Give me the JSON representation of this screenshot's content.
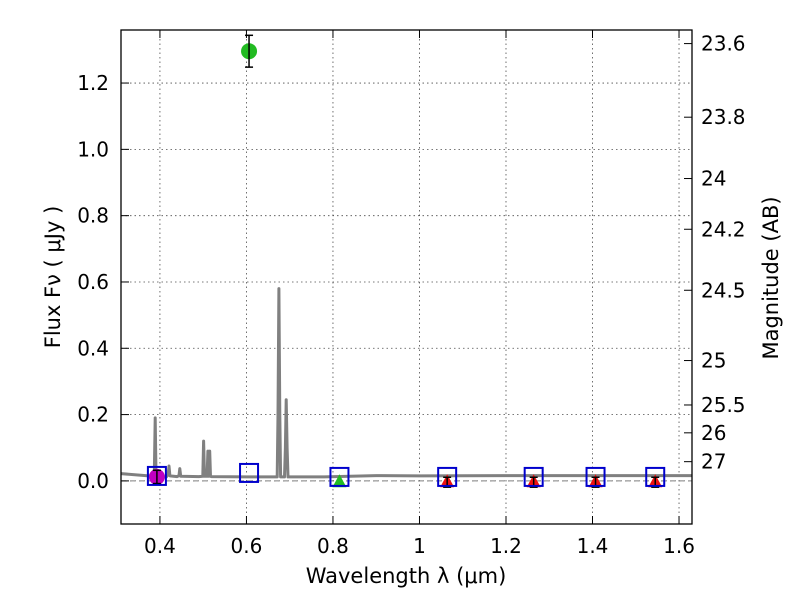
{
  "chart_data": {
    "type": "scatter",
    "title": "",
    "xlabel": "Wavelength  λ (μm)",
    "ylabel": "Flux  Fν  ( μJy )",
    "ylabel_right": "Magnitude (AB)",
    "xlim": [
      0.31,
      1.63
    ],
    "ylim": [
      -0.13,
      1.36
    ],
    "grid": true,
    "x_ticks": [
      0.4,
      0.6,
      0.8,
      1.0,
      1.2,
      1.4,
      1.6
    ],
    "x_tick_labels": [
      "0.4",
      "0.6",
      "0.8",
      "1",
      "1.2",
      "1.4",
      "1.6"
    ],
    "y_ticks": [
      0.0,
      0.2,
      0.4,
      0.6,
      0.8,
      1.0,
      1.2
    ],
    "y_tick_labels": [
      "0.0",
      "0.2",
      "0.4",
      "0.6",
      "0.8",
      "1.0",
      "1.2"
    ],
    "right_ticks": [
      {
        "label": "23.6",
        "flux": 1.319
      },
      {
        "label": "23.8",
        "flux": 1.097
      },
      {
        "label": "24",
        "flux": 0.912
      },
      {
        "label": "24.2",
        "flux": 0.759
      },
      {
        "label": "24.5",
        "flux": 0.575
      },
      {
        "label": "25",
        "flux": 0.363
      },
      {
        "label": "25.5",
        "flux": 0.229
      },
      {
        "label": "26",
        "flux": 0.145
      },
      {
        "label": "27",
        "flux": 0.058
      }
    ],
    "sed_model": {
      "name": "model spectrum",
      "color": "#808080",
      "x": [
        0.31,
        0.385,
        0.387,
        0.389,
        0.391,
        0.393,
        0.395,
        0.4,
        0.415,
        0.419,
        0.421,
        0.423,
        0.44,
        0.444,
        0.446,
        0.448,
        0.49,
        0.499,
        0.501,
        0.503,
        0.509,
        0.511,
        0.513,
        0.515,
        0.517,
        0.519,
        0.6,
        0.671,
        0.673,
        0.675,
        0.677,
        0.679,
        0.684,
        0.688,
        0.69,
        0.692,
        0.694,
        0.696,
        0.7,
        0.78,
        0.9,
        1.0,
        1.2,
        1.4,
        1.63
      ],
      "y": [
        0.022,
        0.014,
        0.02,
        0.19,
        0.02,
        0.014,
        0.012,
        0.012,
        0.012,
        0.02,
        0.045,
        0.015,
        0.013,
        0.016,
        0.037,
        0.014,
        0.013,
        0.014,
        0.12,
        0.014,
        0.014,
        0.09,
        0.014,
        0.09,
        0.014,
        0.013,
        0.012,
        0.012,
        0.2,
        0.58,
        0.2,
        0.012,
        0.012,
        0.012,
        0.1,
        0.245,
        0.1,
        0.012,
        0.012,
        0.012,
        0.016,
        0.015,
        0.016,
        0.016,
        0.016
      ]
    },
    "dashed_zero": {
      "y": 0.0,
      "color": "#808080"
    },
    "observed": [
      {
        "name": "magenta point",
        "x": 0.393,
        "y": 0.012,
        "err": 0.02,
        "color": "#c000c0",
        "shape": "circle"
      },
      {
        "name": "green point",
        "x": 0.606,
        "y": 1.296,
        "err": 0.048,
        "color": "#22bb22",
        "shape": "circle"
      },
      {
        "name": "green triangle",
        "x": 0.815,
        "y": -0.004,
        "err": 0.0,
        "color": "#22bb22",
        "shape": "triangle"
      },
      {
        "name": "red triangle 1",
        "x": 1.064,
        "y": -0.004,
        "err": 0.015,
        "color": "#ee1111",
        "shape": "triangle"
      },
      {
        "name": "red triangle 2",
        "x": 1.264,
        "y": -0.004,
        "err": 0.015,
        "color": "#ee1111",
        "shape": "triangle"
      },
      {
        "name": "red triangle 3",
        "x": 1.407,
        "y": -0.004,
        "err": 0.015,
        "color": "#ee1111",
        "shape": "triangle"
      },
      {
        "name": "red triangle 4",
        "x": 1.545,
        "y": -0.004,
        "err": 0.015,
        "color": "#ee1111",
        "shape": "triangle"
      }
    ],
    "model_boxes": {
      "color": "#0000cc",
      "points": [
        {
          "x": 0.393,
          "y": 0.015
        },
        {
          "x": 0.606,
          "y": 0.024
        },
        {
          "x": 0.815,
          "y": 0.012
        },
        {
          "x": 1.064,
          "y": 0.012
        },
        {
          "x": 1.264,
          "y": 0.012
        },
        {
          "x": 1.407,
          "y": 0.012
        },
        {
          "x": 1.545,
          "y": 0.012
        }
      ]
    }
  }
}
